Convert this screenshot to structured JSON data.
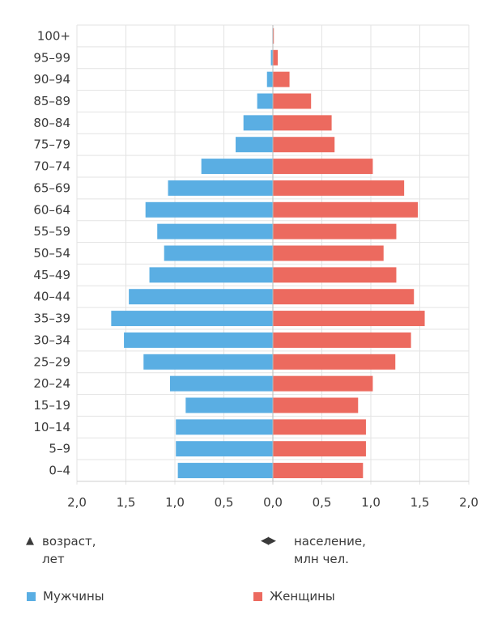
{
  "chart_data": {
    "type": "bar",
    "orientation": "horizontal-population-pyramid",
    "categories": [
      "0–4",
      "5–9",
      "10–14",
      "15–19",
      "20–24",
      "25–29",
      "30–34",
      "35–39",
      "40–44",
      "45–49",
      "50–54",
      "55–59",
      "60–64",
      "65–69",
      "70–74",
      "75–79",
      "80–84",
      "85–89",
      "90–94",
      "95–99",
      "100+"
    ],
    "series": [
      {
        "name": "Мужчины",
        "color": "#5aaee3",
        "values": [
          0.97,
          0.99,
          0.99,
          0.89,
          1.05,
          1.32,
          1.52,
          1.65,
          1.47,
          1.26,
          1.11,
          1.18,
          1.3,
          1.07,
          0.73,
          0.38,
          0.3,
          0.16,
          0.06,
          0.02,
          0.005
        ]
      },
      {
        "name": "Женщины",
        "color": "#ec6a5f",
        "values": [
          0.92,
          0.95,
          0.95,
          0.87,
          1.02,
          1.25,
          1.41,
          1.55,
          1.44,
          1.26,
          1.13,
          1.26,
          1.48,
          1.34,
          1.02,
          0.63,
          0.6,
          0.39,
          0.17,
          0.05,
          0.01
        ]
      }
    ],
    "xlim": [
      -2,
      2
    ],
    "xticks": [
      -2,
      -1.5,
      -1,
      -0.5,
      0,
      0.5,
      1,
      1.5,
      2
    ],
    "xtick_labels": [
      "2,0",
      "1,5",
      "1,0",
      "0,5",
      "0,0",
      "0,5",
      "1,0",
      "1,5",
      "2,0"
    ],
    "grid": true,
    "legend_position": "bottom"
  },
  "axis_notes": {
    "y": {
      "marker": "▲",
      "text1": "возраст,",
      "text2": "лет"
    },
    "x": {
      "marker": "◀▶",
      "text1": "население,",
      "text2": "млн чел."
    }
  },
  "legend": [
    {
      "label": "Мужчины",
      "color": "#5aaee3"
    },
    {
      "label": "Женщины",
      "color": "#ec6a5f"
    }
  ]
}
